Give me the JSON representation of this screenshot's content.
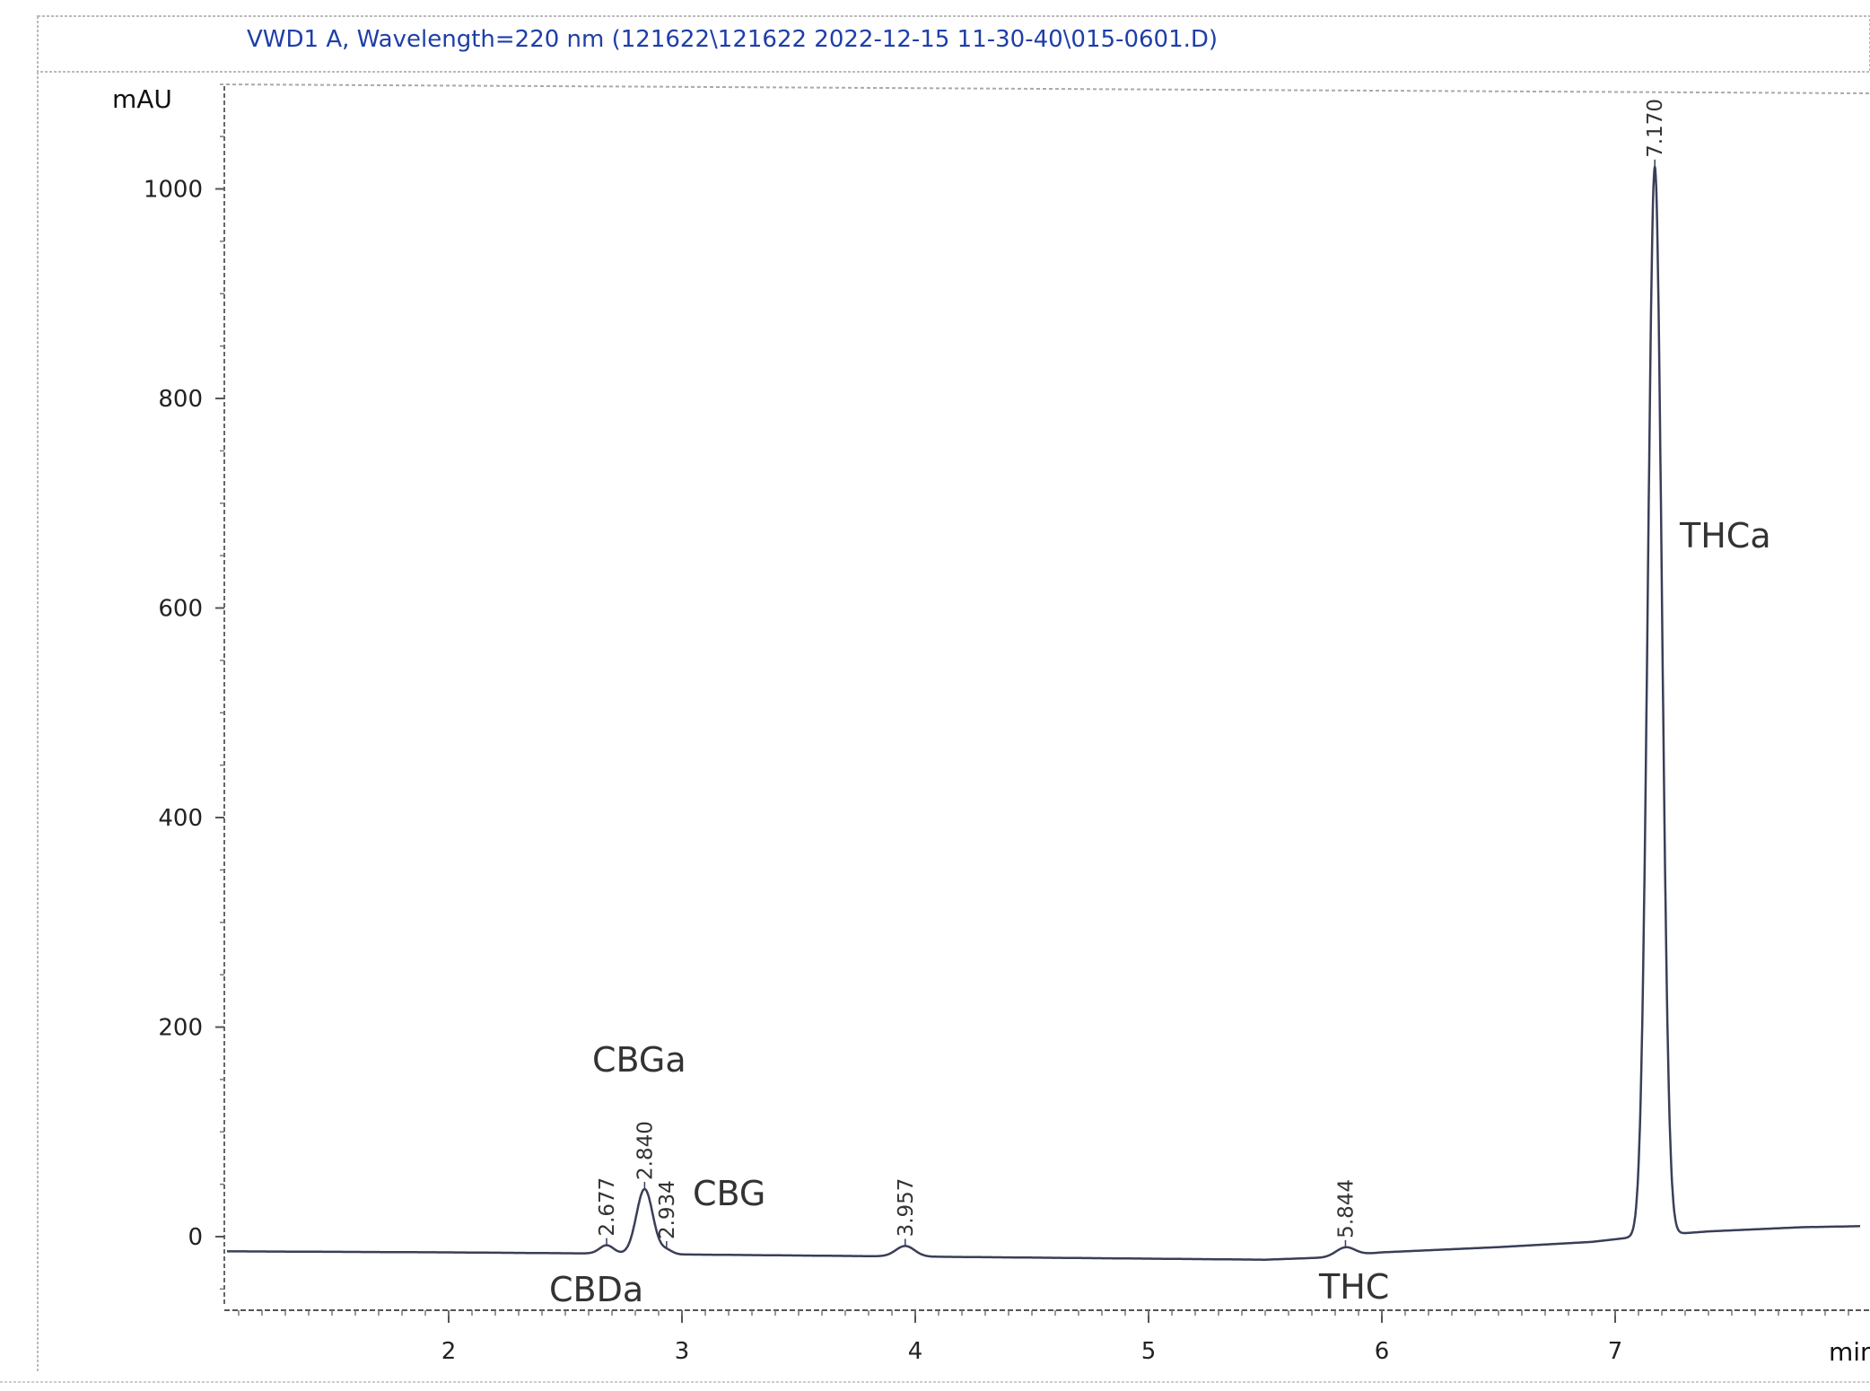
{
  "header": {
    "title": "VWD1 A, Wavelength=220 nm (121622\\121622 2022-12-15 11-30-40\\015-0601.D)"
  },
  "chart_data": {
    "type": "line",
    "title": "VWD1 A, Wavelength=220 nm (121622\\121622 2022-12-15 11-30-40\\015-0601.D)",
    "xlabel": "min",
    "ylabel": "mAU",
    "xlim": [
      1.05,
      8.05
    ],
    "ylim": [
      -80,
      1090
    ],
    "x_ticks": [
      "2",
      "3",
      "4",
      "5",
      "6",
      "7"
    ],
    "y_ticks": [
      "0",
      "200",
      "400",
      "600",
      "800",
      "1000"
    ],
    "grid": false,
    "baseline": [
      [
        1.05,
        -14
      ],
      [
        2.0,
        -15
      ],
      [
        2.6,
        -16
      ],
      [
        3.0,
        -17
      ],
      [
        3.5,
        -18
      ],
      [
        4.5,
        -20
      ],
      [
        5.0,
        -21
      ],
      [
        5.5,
        -22
      ],
      [
        5.75,
        -20
      ],
      [
        6.0,
        -15
      ],
      [
        6.5,
        -10
      ],
      [
        6.9,
        -5
      ],
      [
        7.1,
        0
      ],
      [
        7.4,
        5
      ],
      [
        7.8,
        9
      ],
      [
        8.05,
        10
      ]
    ],
    "peaks": [
      {
        "rt": 2.677,
        "rt_label": "2.677",
        "height": 8,
        "width": 0.03
      },
      {
        "rt": 2.84,
        "rt_label": "2.840",
        "height": 62,
        "width": 0.035
      },
      {
        "rt": 2.934,
        "rt_label": "2.934",
        "height": 4,
        "width": 0.025
      },
      {
        "rt": 3.957,
        "rt_label": "3.957",
        "height": 10,
        "width": 0.04
      },
      {
        "rt": 5.844,
        "rt_label": "5.844",
        "height": 8,
        "width": 0.04
      },
      {
        "rt": 7.17,
        "rt_label": "7.170",
        "height": 1020,
        "width": 0.03
      }
    ],
    "annotations": [
      {
        "text": "CBDa"
      },
      {
        "text": "CBGa"
      },
      {
        "text": "CBG"
      },
      {
        "text": "THC"
      },
      {
        "text": "THCa"
      }
    ]
  }
}
